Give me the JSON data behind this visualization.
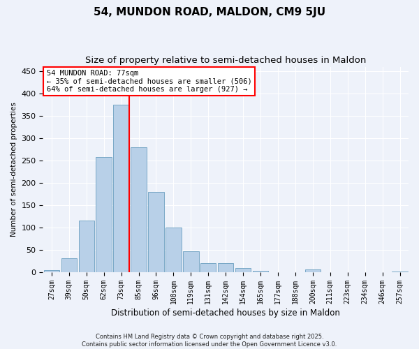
{
  "title": "54, MUNDON ROAD, MALDON, CM9 5JU",
  "subtitle": "Size of property relative to semi-detached houses in Maldon",
  "xlabel": "Distribution of semi-detached houses by size in Maldon",
  "ylabel": "Number of semi-detached properties",
  "categories": [
    "27sqm",
    "39sqm",
    "50sqm",
    "62sqm",
    "73sqm",
    "85sqm",
    "96sqm",
    "108sqm",
    "119sqm",
    "131sqm",
    "142sqm",
    "154sqm",
    "165sqm",
    "177sqm",
    "188sqm",
    "200sqm",
    "211sqm",
    "223sqm",
    "234sqm",
    "246sqm",
    "257sqm"
  ],
  "values": [
    5,
    32,
    115,
    258,
    375,
    280,
    180,
    100,
    47,
    20,
    20,
    10,
    4,
    0,
    0,
    6,
    0,
    0,
    0,
    0,
    1
  ],
  "bar_color": "#b8d0e8",
  "bar_edge_color": "#6a9fc0",
  "red_line_bin": 4,
  "red_line_label": "54 MUNDON ROAD: 77sqm",
  "annotation_smaller": "← 35% of semi-detached houses are smaller (506)",
  "annotation_larger": "64% of semi-detached houses are larger (927) →",
  "ylim": [
    0,
    460
  ],
  "yticks": [
    0,
    50,
    100,
    150,
    200,
    250,
    300,
    350,
    400,
    450
  ],
  "footnote1": "Contains HM Land Registry data © Crown copyright and database right 2025.",
  "footnote2": "Contains public sector information licensed under the Open Government Licence v3.0.",
  "bg_color": "#eef2fa",
  "title_fontsize": 11,
  "subtitle_fontsize": 9.5
}
